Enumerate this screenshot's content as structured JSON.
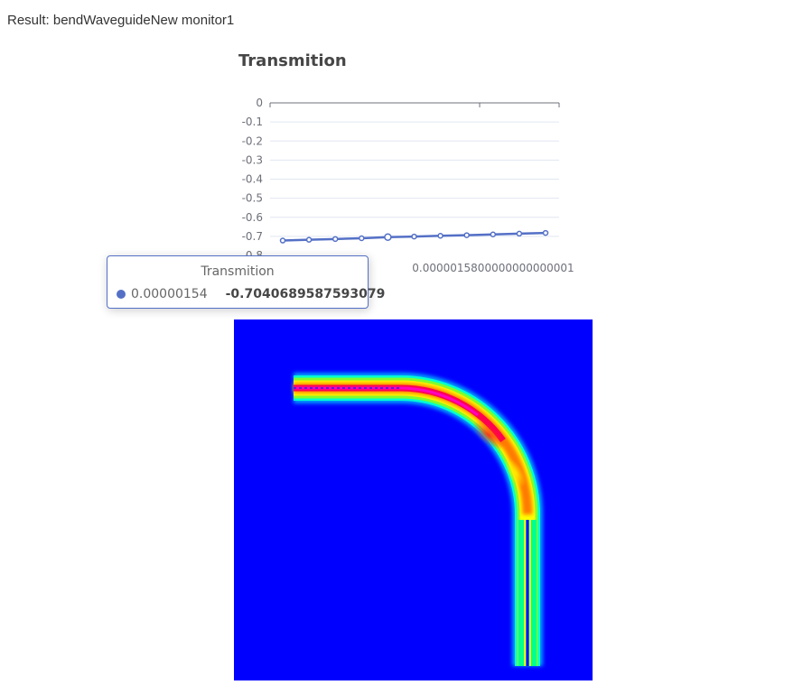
{
  "page": {
    "result_title": "Result: bendWaveguideNew monitor1"
  },
  "chart_data": {
    "type": "line",
    "title": "Transmition",
    "series": [
      {
        "name": "Transmition",
        "color": "#5470c6",
        "points": [
          [
            1.5e-06,
            -0.722
          ],
          [
            1.51e-06,
            -0.718
          ],
          [
            1.52e-06,
            -0.714
          ],
          [
            1.53e-06,
            -0.71
          ],
          [
            1.54e-06,
            -0.7040689587593079
          ],
          [
            1.55e-06,
            -0.701
          ],
          [
            1.56e-06,
            -0.697
          ],
          [
            1.57e-06,
            -0.694
          ],
          [
            1.58e-06,
            -0.69
          ],
          [
            1.59e-06,
            -0.686
          ],
          [
            1.6e-06,
            -0.682
          ]
        ]
      }
    ],
    "y_ticks": [
      "0",
      "-0.1",
      "-0.2",
      "-0.3",
      "-0.4",
      "-0.5",
      "-0.6",
      "-0.7",
      "-0.8"
    ],
    "ylim": [
      -0.8,
      0
    ],
    "x_tick_label": "0.0000015800000000000001",
    "grid": true,
    "legend": "none",
    "tooltip": {
      "title": "Transmition",
      "x_value": "0.00000154",
      "y_value": "-0.7040689587593079",
      "color": "#5470c6"
    }
  },
  "field_image": {
    "colormap": "jet",
    "background_color": "#0000ff"
  }
}
